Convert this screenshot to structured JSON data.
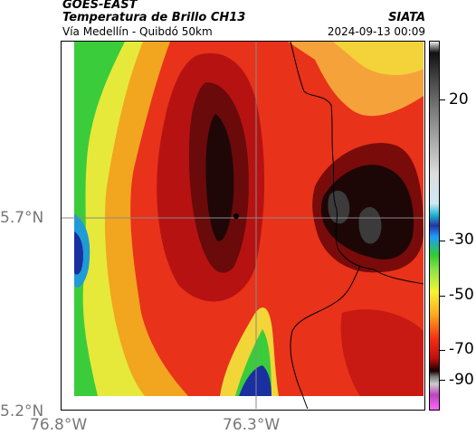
{
  "header": {
    "satellite": "GOES-EAST",
    "product": "Temperatura de Brillo CH13",
    "region": "Vía Medellín - Quibdó 50km",
    "organization": "SIATA",
    "timestamp": "2024-09-13 00:09"
  },
  "axes": {
    "y_ticks": [
      "5.7°N",
      "5.2°N"
    ],
    "x_ticks": [
      "76.8°W",
      "76.3°W"
    ]
  },
  "colorbar": {
    "ticks": [
      "20",
      "-30",
      "-50",
      "-70",
      "-90"
    ],
    "palette_note_colors": [
      "#2fcd2f",
      "#f3f531",
      "#ffac1f",
      "#f52a14",
      "#1a0000",
      "#2733a0"
    ]
  }
}
